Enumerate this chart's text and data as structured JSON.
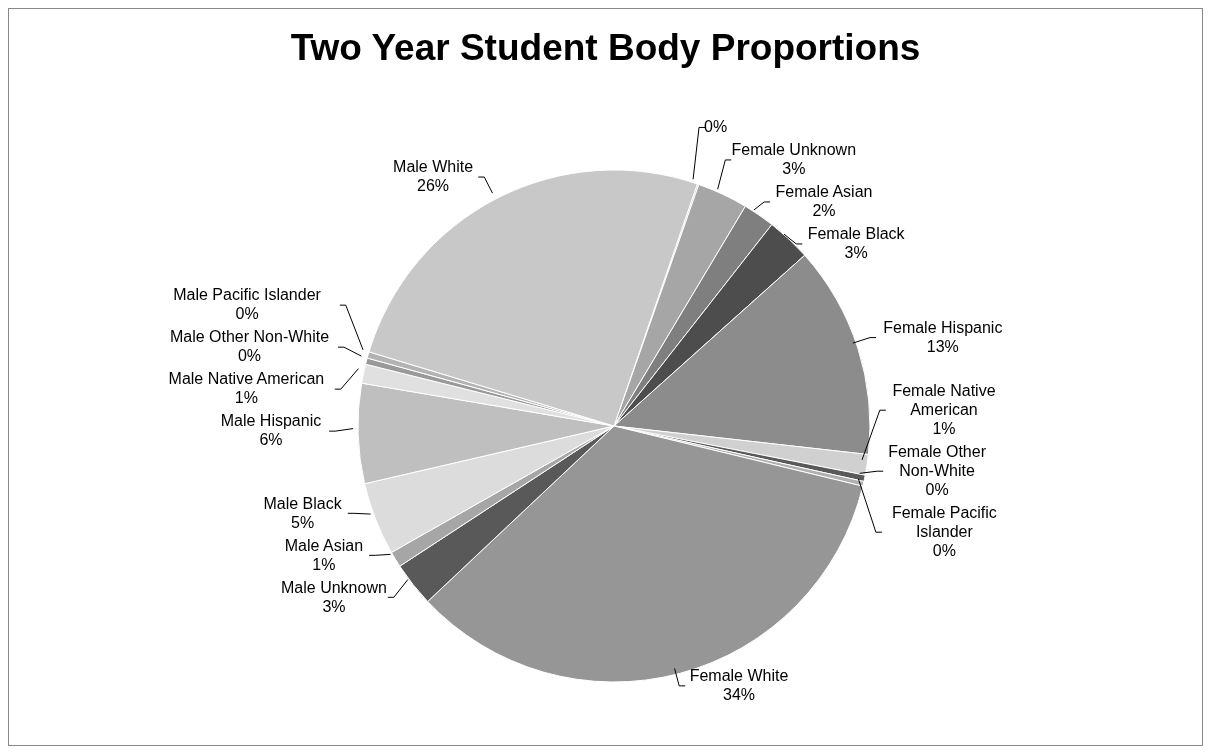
{
  "chart_data": {
    "type": "pie",
    "title": "Two Year Student Body Proportions",
    "categories": [
      null,
      "Female Unknown",
      "Female Asian",
      "Female Black",
      "Female Hispanic",
      "Female Native American",
      "Female Other Non-White",
      "Female Pacific Islander",
      "Female White",
      "Male Unknown",
      "Male Asian",
      "Male Black",
      "Male Hispanic",
      "Male Native American",
      "Male Other Non-White",
      "Male Pacific Islander",
      "Male White"
    ],
    "values": [
      0.1,
      3.2,
      2.0,
      2.8,
      13.4,
      1.3,
      0.4,
      0.3,
      34.2,
      2.8,
      1.0,
      4.6,
      6.3,
      1.2,
      0.4,
      0.4,
      25.6
    ],
    "colors": [
      "#bfbfbf",
      "#a6a6a6",
      "#7f7f7f",
      "#4d4d4d",
      "#8c8c8c",
      "#d0d0d0",
      "#595959",
      "#b0b0b0",
      "#969696",
      "#595959",
      "#a6a6a6",
      "#dcdcdc",
      "#bfbfbf",
      "#e0e0e0",
      "#999999",
      "#b3b3b3",
      "#c8c8c8"
    ],
    "value_labels": [
      "0%",
      "3%",
      "2%",
      "3%",
      "13%",
      "1%",
      "0%",
      "0%",
      "34%",
      "3%",
      "1%",
      "5%",
      "6%",
      "1%",
      "0%",
      "0%",
      "26%"
    ]
  }
}
